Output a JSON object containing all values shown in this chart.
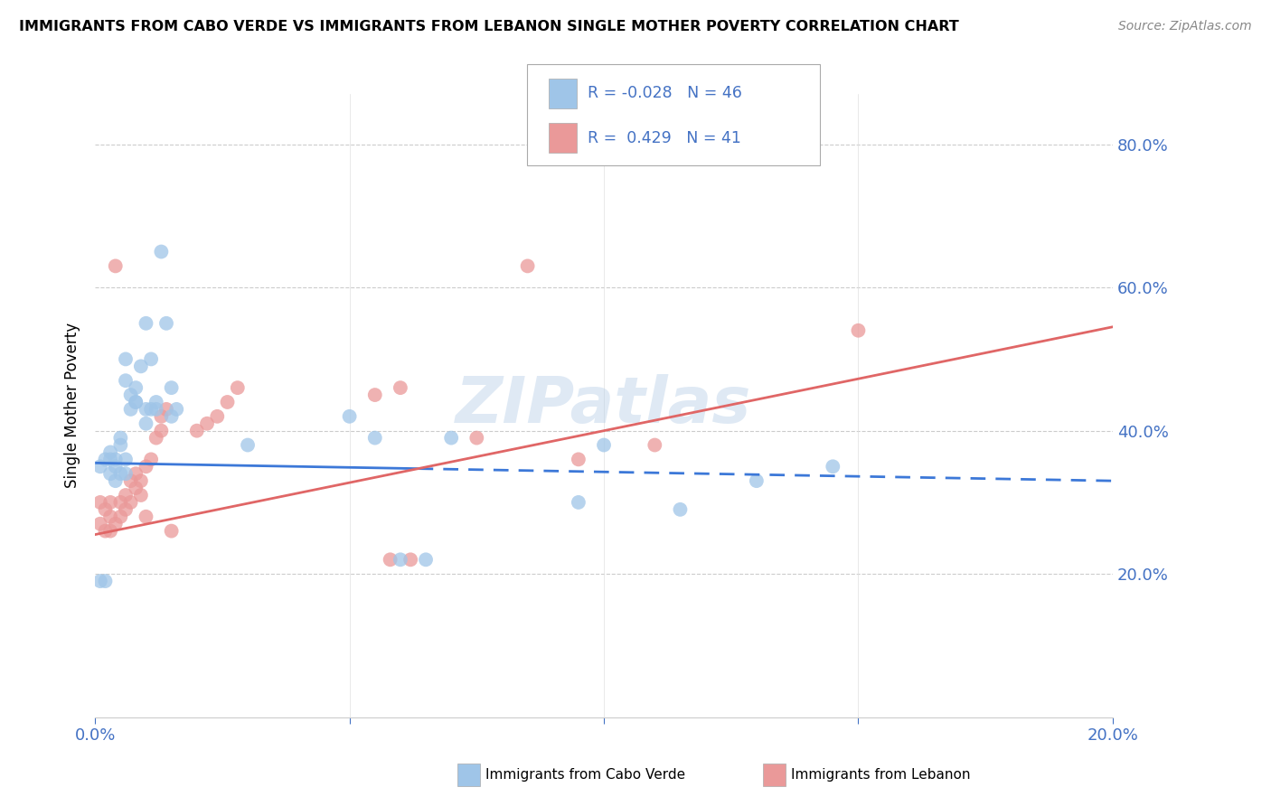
{
  "title": "IMMIGRANTS FROM CABO VERDE VS IMMIGRANTS FROM LEBANON SINGLE MOTHER POVERTY CORRELATION CHART",
  "source": "Source: ZipAtlas.com",
  "ylabel": "Single Mother Poverty",
  "ytick_labels": [
    "20.0%",
    "40.0%",
    "60.0%",
    "80.0%"
  ],
  "ytick_values": [
    0.2,
    0.4,
    0.6,
    0.8
  ],
  "xlim": [
    0.0,
    0.2
  ],
  "ylim": [
    0.0,
    0.87
  ],
  "blue_color": "#9fc5e8",
  "pink_color": "#ea9999",
  "blue_line_color": "#3c78d8",
  "pink_line_color": "#e06666",
  "axis_color": "#4472c4",
  "watermark": "ZIPatlas",
  "blue_R": -0.028,
  "blue_N": 46,
  "pink_R": 0.429,
  "pink_N": 41,
  "blue_line_y0": 0.355,
  "blue_line_y1": 0.33,
  "pink_line_y0": 0.255,
  "pink_line_y1": 0.545,
  "cabo_verde_x": [
    0.001,
    0.001,
    0.002,
    0.002,
    0.003,
    0.003,
    0.004,
    0.004,
    0.005,
    0.005,
    0.005,
    0.006,
    0.006,
    0.006,
    0.007,
    0.007,
    0.008,
    0.008,
    0.009,
    0.01,
    0.01,
    0.011,
    0.011,
    0.012,
    0.012,
    0.013,
    0.014,
    0.015,
    0.015,
    0.016,
    0.03,
    0.05,
    0.055,
    0.06,
    0.065,
    0.07,
    0.095,
    0.1,
    0.115,
    0.13,
    0.145,
    0.003,
    0.004,
    0.006,
    0.008,
    0.01
  ],
  "cabo_verde_y": [
    0.35,
    0.19,
    0.36,
    0.19,
    0.37,
    0.36,
    0.35,
    0.33,
    0.34,
    0.38,
    0.39,
    0.5,
    0.34,
    0.47,
    0.43,
    0.45,
    0.44,
    0.46,
    0.49,
    0.55,
    0.41,
    0.5,
    0.43,
    0.44,
    0.43,
    0.65,
    0.55,
    0.46,
    0.42,
    0.43,
    0.38,
    0.42,
    0.39,
    0.22,
    0.22,
    0.39,
    0.3,
    0.38,
    0.29,
    0.33,
    0.35,
    0.34,
    0.36,
    0.36,
    0.44,
    0.43
  ],
  "lebanon_x": [
    0.001,
    0.001,
    0.002,
    0.002,
    0.003,
    0.003,
    0.003,
    0.004,
    0.004,
    0.005,
    0.005,
    0.006,
    0.006,
    0.007,
    0.007,
    0.008,
    0.008,
    0.009,
    0.009,
    0.01,
    0.01,
    0.011,
    0.012,
    0.013,
    0.013,
    0.014,
    0.015,
    0.02,
    0.022,
    0.024,
    0.026,
    0.028,
    0.055,
    0.058,
    0.06,
    0.062,
    0.075,
    0.085,
    0.095,
    0.11,
    0.15
  ],
  "lebanon_y": [
    0.27,
    0.3,
    0.26,
    0.29,
    0.26,
    0.28,
    0.3,
    0.27,
    0.63,
    0.28,
    0.3,
    0.29,
    0.31,
    0.3,
    0.33,
    0.32,
    0.34,
    0.31,
    0.33,
    0.35,
    0.28,
    0.36,
    0.39,
    0.4,
    0.42,
    0.43,
    0.26,
    0.4,
    0.41,
    0.42,
    0.44,
    0.46,
    0.45,
    0.22,
    0.46,
    0.22,
    0.39,
    0.63,
    0.36,
    0.38,
    0.54
  ]
}
